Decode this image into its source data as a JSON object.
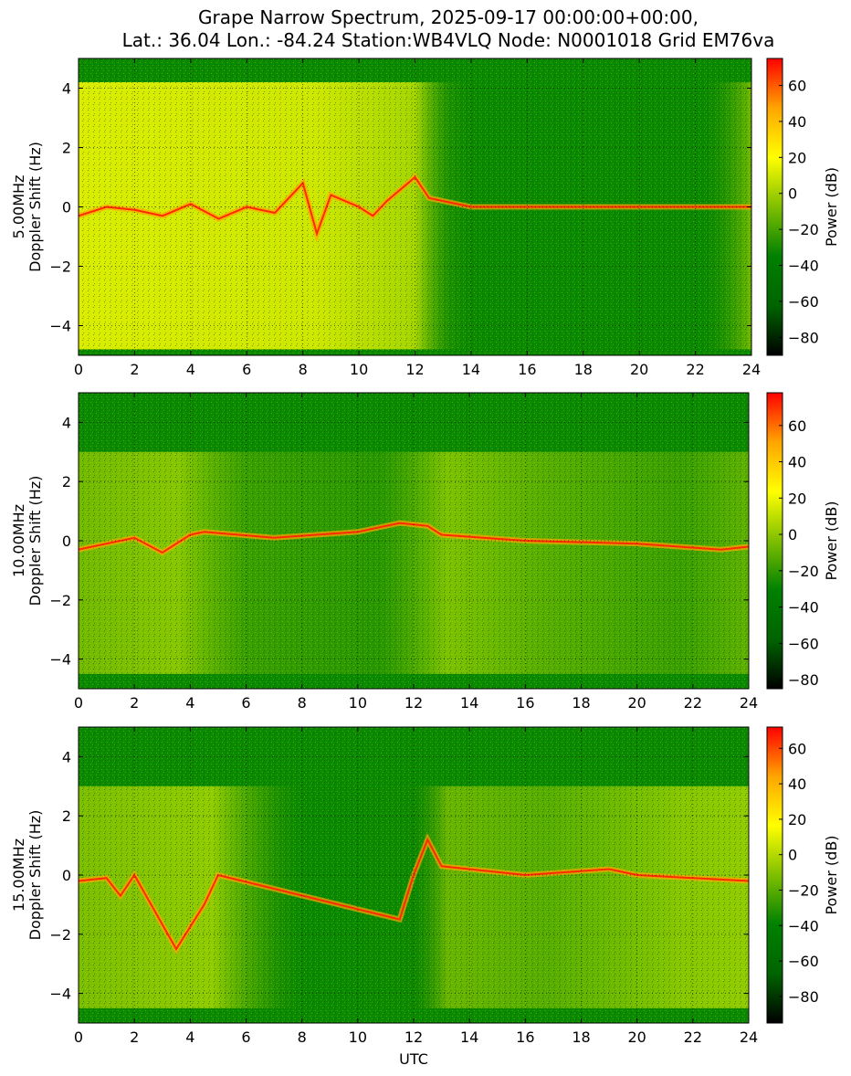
{
  "title_lines": [
    "Grape Narrow Spectrum, 2025-09-17 00:00:00+00:00,",
    "Lat.: 36.04 Lon.: -84.24 Station:WB4VLQ Node: N0001018 Grid EM76va"
  ],
  "colormap_stops": [
    "#000000",
    "#006400",
    "#008000",
    "#7fbf00",
    "#ffff00",
    "#ffa500",
    "#ff0000"
  ],
  "chart_data": [
    {
      "type": "heatmap",
      "panel": "5.00MHz",
      "ylabel": "5.00MHz\nDoppler Shift (Hz)",
      "xlabel": "",
      "xlim": [
        0,
        24
      ],
      "ylim": [
        -5,
        5
      ],
      "xticks": [
        0,
        2,
        4,
        6,
        8,
        10,
        12,
        14,
        16,
        18,
        20,
        22,
        24
      ],
      "yticks": [
        -4,
        -2,
        0,
        2,
        4
      ],
      "grid": true,
      "colorbar": {
        "label": "Power (dB)",
        "range": [
          -90,
          75
        ],
        "ticks": [
          -80,
          -60,
          -40,
          -20,
          0,
          20,
          40,
          60
        ]
      },
      "carrier_trace": [
        [
          0,
          -0.3
        ],
        [
          1,
          0.0
        ],
        [
          2,
          -0.1
        ],
        [
          3,
          -0.3
        ],
        [
          4,
          0.1
        ],
        [
          5,
          -0.4
        ],
        [
          6,
          0.0
        ],
        [
          7,
          -0.2
        ],
        [
          8,
          0.8
        ],
        [
          8.5,
          -0.9
        ],
        [
          9,
          0.4
        ],
        [
          10,
          0.0
        ],
        [
          10.5,
          -0.3
        ],
        [
          11,
          0.2
        ],
        [
          12,
          1.0
        ],
        [
          12.5,
          0.3
        ],
        [
          14,
          0.0
        ],
        [
          24,
          0.0
        ]
      ]
    },
    {
      "type": "heatmap",
      "panel": "10.00MHz",
      "ylabel": "10.00MHz\nDoppler Shift (Hz)",
      "xlabel": "",
      "xlim": [
        0,
        24
      ],
      "ylim": [
        -5,
        5
      ],
      "xticks": [
        0,
        2,
        4,
        6,
        8,
        10,
        12,
        14,
        16,
        18,
        20,
        22,
        24
      ],
      "yticks": [
        -4,
        -2,
        0,
        2,
        4
      ],
      "grid": true,
      "colorbar": {
        "label": "Power (dB)",
        "range": [
          -85,
          78
        ],
        "ticks": [
          -80,
          -60,
          -40,
          -20,
          0,
          20,
          40,
          60
        ]
      },
      "carrier_trace": [
        [
          0,
          -0.3
        ],
        [
          1,
          -0.1
        ],
        [
          2,
          0.1
        ],
        [
          3,
          -0.4
        ],
        [
          4,
          0.2
        ],
        [
          4.5,
          0.3
        ],
        [
          7,
          0.1
        ],
        [
          10,
          0.3
        ],
        [
          11.5,
          0.6
        ],
        [
          12.5,
          0.5
        ],
        [
          13,
          0.2
        ],
        [
          16,
          0.0
        ],
        [
          20,
          -0.1
        ],
        [
          23,
          -0.3
        ],
        [
          24,
          -0.2
        ]
      ]
    },
    {
      "type": "heatmap",
      "panel": "15.00MHz",
      "ylabel": "15.00MHz\nDoppler Shift (Hz)",
      "xlabel": "UTC",
      "xlim": [
        0,
        24
      ],
      "ylim": [
        -5,
        5
      ],
      "xticks": [
        0,
        2,
        4,
        6,
        8,
        10,
        12,
        14,
        16,
        18,
        20,
        22,
        24
      ],
      "yticks": [
        -4,
        -2,
        0,
        2,
        4
      ],
      "grid": true,
      "colorbar": {
        "label": "Power (dB)",
        "range": [
          -95,
          72
        ],
        "ticks": [
          -80,
          -60,
          -40,
          -20,
          0,
          20,
          40,
          60
        ]
      },
      "carrier_trace": [
        [
          0,
          -0.2
        ],
        [
          1,
          -0.1
        ],
        [
          1.5,
          -0.7
        ],
        [
          2,
          0.0
        ],
        [
          3.5,
          -2.5
        ],
        [
          4.5,
          -1.0
        ],
        [
          5,
          0.0
        ],
        [
          11.5,
          -1.5
        ],
        [
          12,
          0.0
        ],
        [
          12.5,
          1.2
        ],
        [
          13,
          0.3
        ],
        [
          16,
          0.0
        ],
        [
          19,
          0.2
        ],
        [
          20,
          0.0
        ],
        [
          24,
          -0.2
        ]
      ]
    }
  ]
}
